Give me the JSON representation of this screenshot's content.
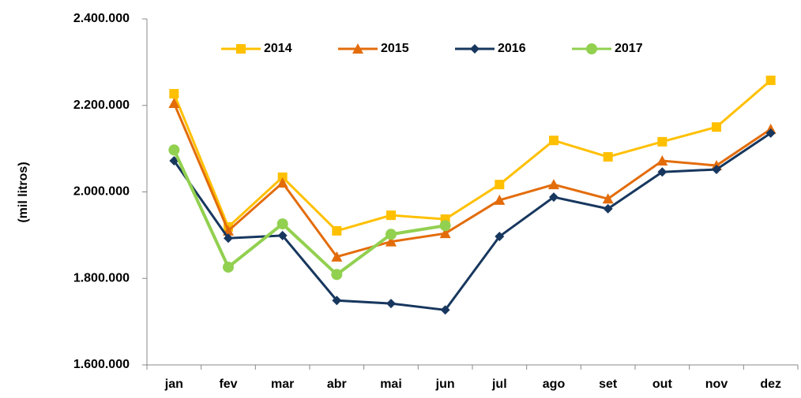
{
  "chart_data": {
    "type": "line",
    "y_label": "(mil litros)",
    "categories": [
      "jan",
      "fev",
      "mar",
      "abr",
      "mai",
      "jun",
      "jul",
      "ago",
      "set",
      "out",
      "nov",
      "dez"
    ],
    "series": [
      {
        "name": "2014",
        "color": "#ffc000",
        "marker": "square",
        "values": [
          2227000,
          1919000,
          2034000,
          1910000,
          1946000,
          1937000,
          2017000,
          2119000,
          2081000,
          2116000,
          2150000,
          2258000
        ]
      },
      {
        "name": "2015",
        "color": "#e36c0a",
        "marker": "triangle",
        "values": [
          2205000,
          1910000,
          2021000,
          1850000,
          1885000,
          1904000,
          1981000,
          2017000,
          1984000,
          2072000,
          2061000,
          2145000
        ]
      },
      {
        "name": "2016",
        "color": "#17375e",
        "marker": "diamond",
        "values": [
          2072000,
          1893000,
          1899000,
          1749000,
          1742000,
          1727000,
          1897000,
          1988000,
          1961000,
          2046000,
          2052000,
          2136000
        ]
      },
      {
        "name": "2017",
        "color": "#92d050",
        "marker": "circle",
        "values": [
          2097000,
          1826000,
          1926000,
          1809000,
          1902000,
          1922000,
          null,
          null,
          null,
          null,
          null,
          null
        ]
      }
    ],
    "ylim": [
      1600000,
      2400000
    ],
    "yticks": [
      {
        "value": 1600000,
        "label": "1.600.000"
      },
      {
        "value": 1800000,
        "label": "1.800.000"
      },
      {
        "value": 2000000,
        "label": "2.000.000"
      },
      {
        "value": 2200000,
        "label": "2.200.000"
      },
      {
        "value": 2400000,
        "label": "2.400.000"
      }
    ],
    "grid": false,
    "legend": "top"
  }
}
